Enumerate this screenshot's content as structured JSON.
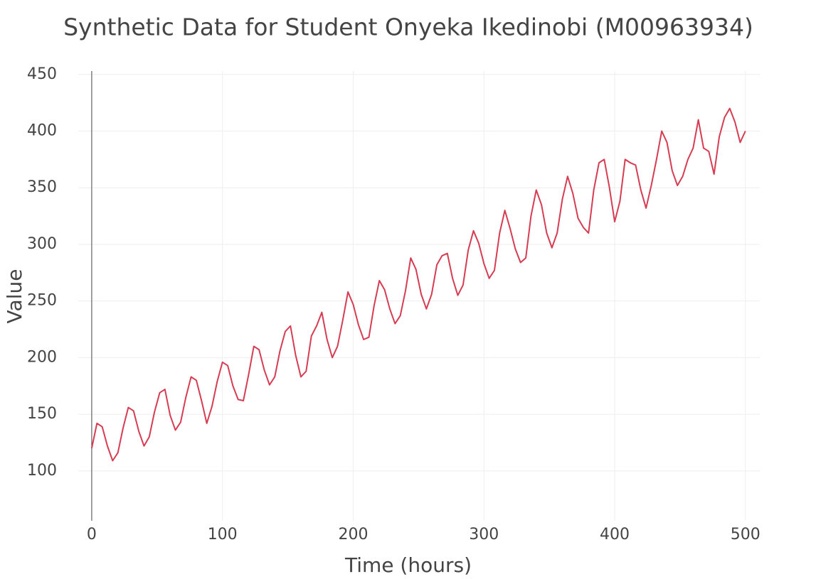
{
  "chart_data": {
    "type": "line",
    "title": "Synthetic Data for Student Onyeka Ikedinobi (M00963934)",
    "x_label": "Time (hours)",
    "y_label": "Value",
    "x": [
      0,
      4,
      8,
      12,
      16,
      20,
      24,
      28,
      32,
      36,
      40,
      44,
      48,
      52,
      56,
      60,
      64,
      68,
      72,
      76,
      80,
      84,
      88,
      92,
      96,
      100,
      104,
      108,
      112,
      116,
      120,
      124,
      128,
      132,
      136,
      140,
      144,
      148,
      152,
      156,
      160,
      164,
      168,
      172,
      176,
      180,
      184,
      188,
      192,
      196,
      200,
      204,
      208,
      212,
      216,
      220,
      224,
      228,
      232,
      236,
      240,
      244,
      248,
      252,
      256,
      260,
      264,
      268,
      272,
      276,
      280,
      284,
      288,
      292,
      296,
      300,
      304,
      308,
      312,
      316,
      320,
      324,
      328,
      332,
      336,
      340,
      344,
      348,
      352,
      356,
      360,
      364,
      368,
      372,
      376,
      380,
      384,
      388,
      392,
      396,
      400,
      404,
      408,
      412,
      416,
      420,
      424,
      428,
      432,
      436,
      440,
      444,
      448,
      452,
      456,
      460,
      464,
      468,
      472,
      476,
      480,
      484,
      488,
      492,
      496,
      500
    ],
    "series": [
      {
        "name": "Value",
        "color": "#d63d52",
        "values": [
          120,
          142,
          139,
          122,
          109,
          116,
          138,
          156,
          153,
          135,
          122,
          130,
          152,
          169,
          172,
          149,
          136,
          143,
          165,
          183,
          180,
          162,
          142,
          157,
          179,
          196,
          193,
          175,
          163,
          162,
          185,
          210,
          207,
          189,
          176,
          183,
          206,
          223,
          228,
          202,
          183,
          188,
          219,
          228,
          240,
          216,
          200,
          210,
          233,
          258,
          247,
          229,
          216,
          218,
          246,
          268,
          260,
          243,
          230,
          237,
          259,
          288,
          278,
          256,
          243,
          256,
          282,
          290,
          292,
          270,
          255,
          264,
          295,
          312,
          301,
          283,
          270,
          277,
          310,
          330,
          314,
          296,
          284,
          288,
          325,
          348,
          335,
          310,
          297,
          310,
          340,
          360,
          345,
          323,
          315,
          310,
          348,
          372,
          375,
          350,
          320,
          338,
          375,
          372,
          370,
          348,
          332,
          352,
          375,
          400,
          390,
          365,
          352,
          360,
          375,
          385,
          410,
          385,
          382,
          362,
          395,
          412,
          420,
          408,
          390,
          400
        ]
      }
    ],
    "xlim": [
      -10.3,
      511
    ],
    "ylim": [
      56,
      453
    ],
    "xticks": [
      0,
      100,
      200,
      300,
      400,
      500
    ],
    "yticks": [
      100,
      150,
      200,
      250,
      300,
      350,
      400,
      450
    ],
    "grid": true
  }
}
